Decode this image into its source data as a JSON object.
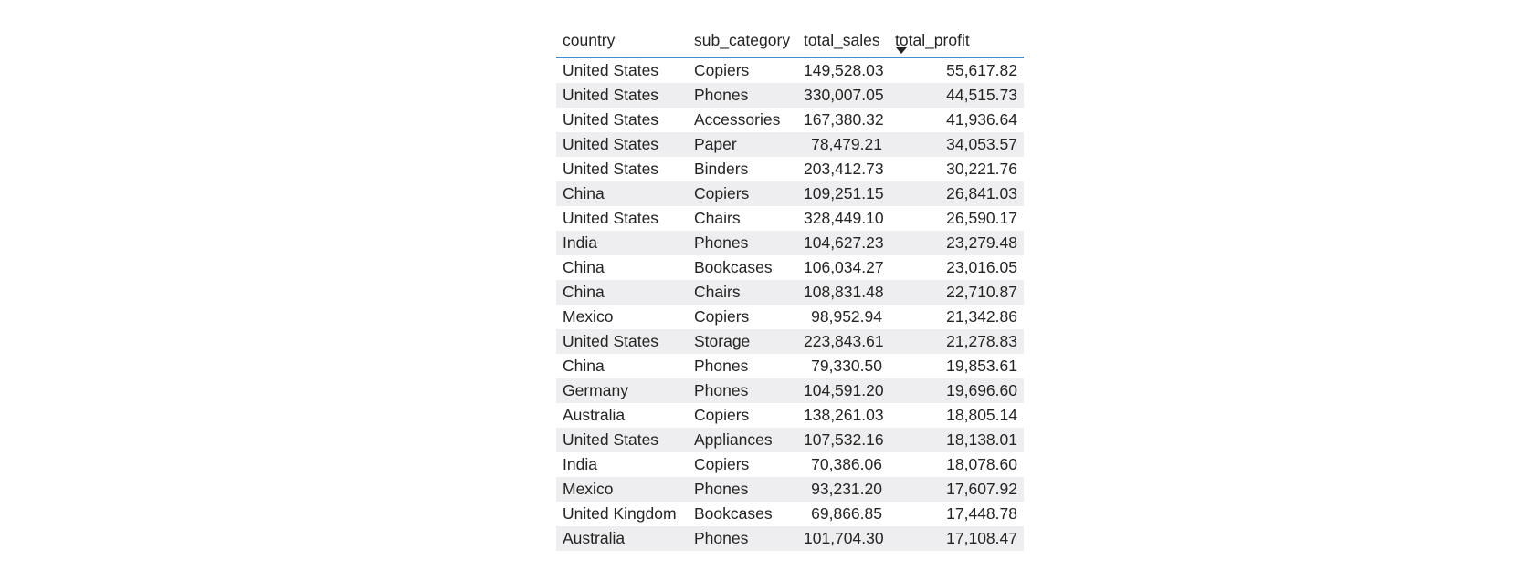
{
  "table": {
    "headers": {
      "country": "country",
      "sub_category": "sub_category",
      "total_sales": "total_sales",
      "total_profit": "total_profit"
    },
    "sort": {
      "column": "total_profit",
      "direction": "descending"
    },
    "rows": [
      {
        "country": "United States",
        "sub_category": "Copiers",
        "total_sales": "149,528.03",
        "total_profit": "55,617.82"
      },
      {
        "country": "United States",
        "sub_category": "Phones",
        "total_sales": "330,007.05",
        "total_profit": "44,515.73"
      },
      {
        "country": "United States",
        "sub_category": "Accessories",
        "total_sales": "167,380.32",
        "total_profit": "41,936.64"
      },
      {
        "country": "United States",
        "sub_category": "Paper",
        "total_sales": "78,479.21",
        "total_profit": "34,053.57"
      },
      {
        "country": "United States",
        "sub_category": "Binders",
        "total_sales": "203,412.73",
        "total_profit": "30,221.76"
      },
      {
        "country": "China",
        "sub_category": "Copiers",
        "total_sales": "109,251.15",
        "total_profit": "26,841.03"
      },
      {
        "country": "United States",
        "sub_category": "Chairs",
        "total_sales": "328,449.10",
        "total_profit": "26,590.17"
      },
      {
        "country": "India",
        "sub_category": "Phones",
        "total_sales": "104,627.23",
        "total_profit": "23,279.48"
      },
      {
        "country": "China",
        "sub_category": "Bookcases",
        "total_sales": "106,034.27",
        "total_profit": "23,016.05"
      },
      {
        "country": "China",
        "sub_category": "Chairs",
        "total_sales": "108,831.48",
        "total_profit": "22,710.87"
      },
      {
        "country": "Mexico",
        "sub_category": "Copiers",
        "total_sales": "98,952.94",
        "total_profit": "21,342.86"
      },
      {
        "country": "United States",
        "sub_category": "Storage",
        "total_sales": "223,843.61",
        "total_profit": "21,278.83"
      },
      {
        "country": "China",
        "sub_category": "Phones",
        "total_sales": "79,330.50",
        "total_profit": "19,853.61"
      },
      {
        "country": "Germany",
        "sub_category": "Phones",
        "total_sales": "104,591.20",
        "total_profit": "19,696.60"
      },
      {
        "country": "Australia",
        "sub_category": "Copiers",
        "total_sales": "138,261.03",
        "total_profit": "18,805.14"
      },
      {
        "country": "United States",
        "sub_category": "Appliances",
        "total_sales": "107,532.16",
        "total_profit": "18,138.01"
      },
      {
        "country": "India",
        "sub_category": "Copiers",
        "total_sales": "70,386.06",
        "total_profit": "18,078.60"
      },
      {
        "country": "Mexico",
        "sub_category": "Phones",
        "total_sales": "93,231.20",
        "total_profit": "17,607.92"
      },
      {
        "country": "United Kingdom",
        "sub_category": "Bookcases",
        "total_sales": "69,866.85",
        "total_profit": "17,448.78"
      },
      {
        "country": "Australia",
        "sub_category": "Phones",
        "total_sales": "101,704.30",
        "total_profit": "17,108.47"
      }
    ]
  }
}
